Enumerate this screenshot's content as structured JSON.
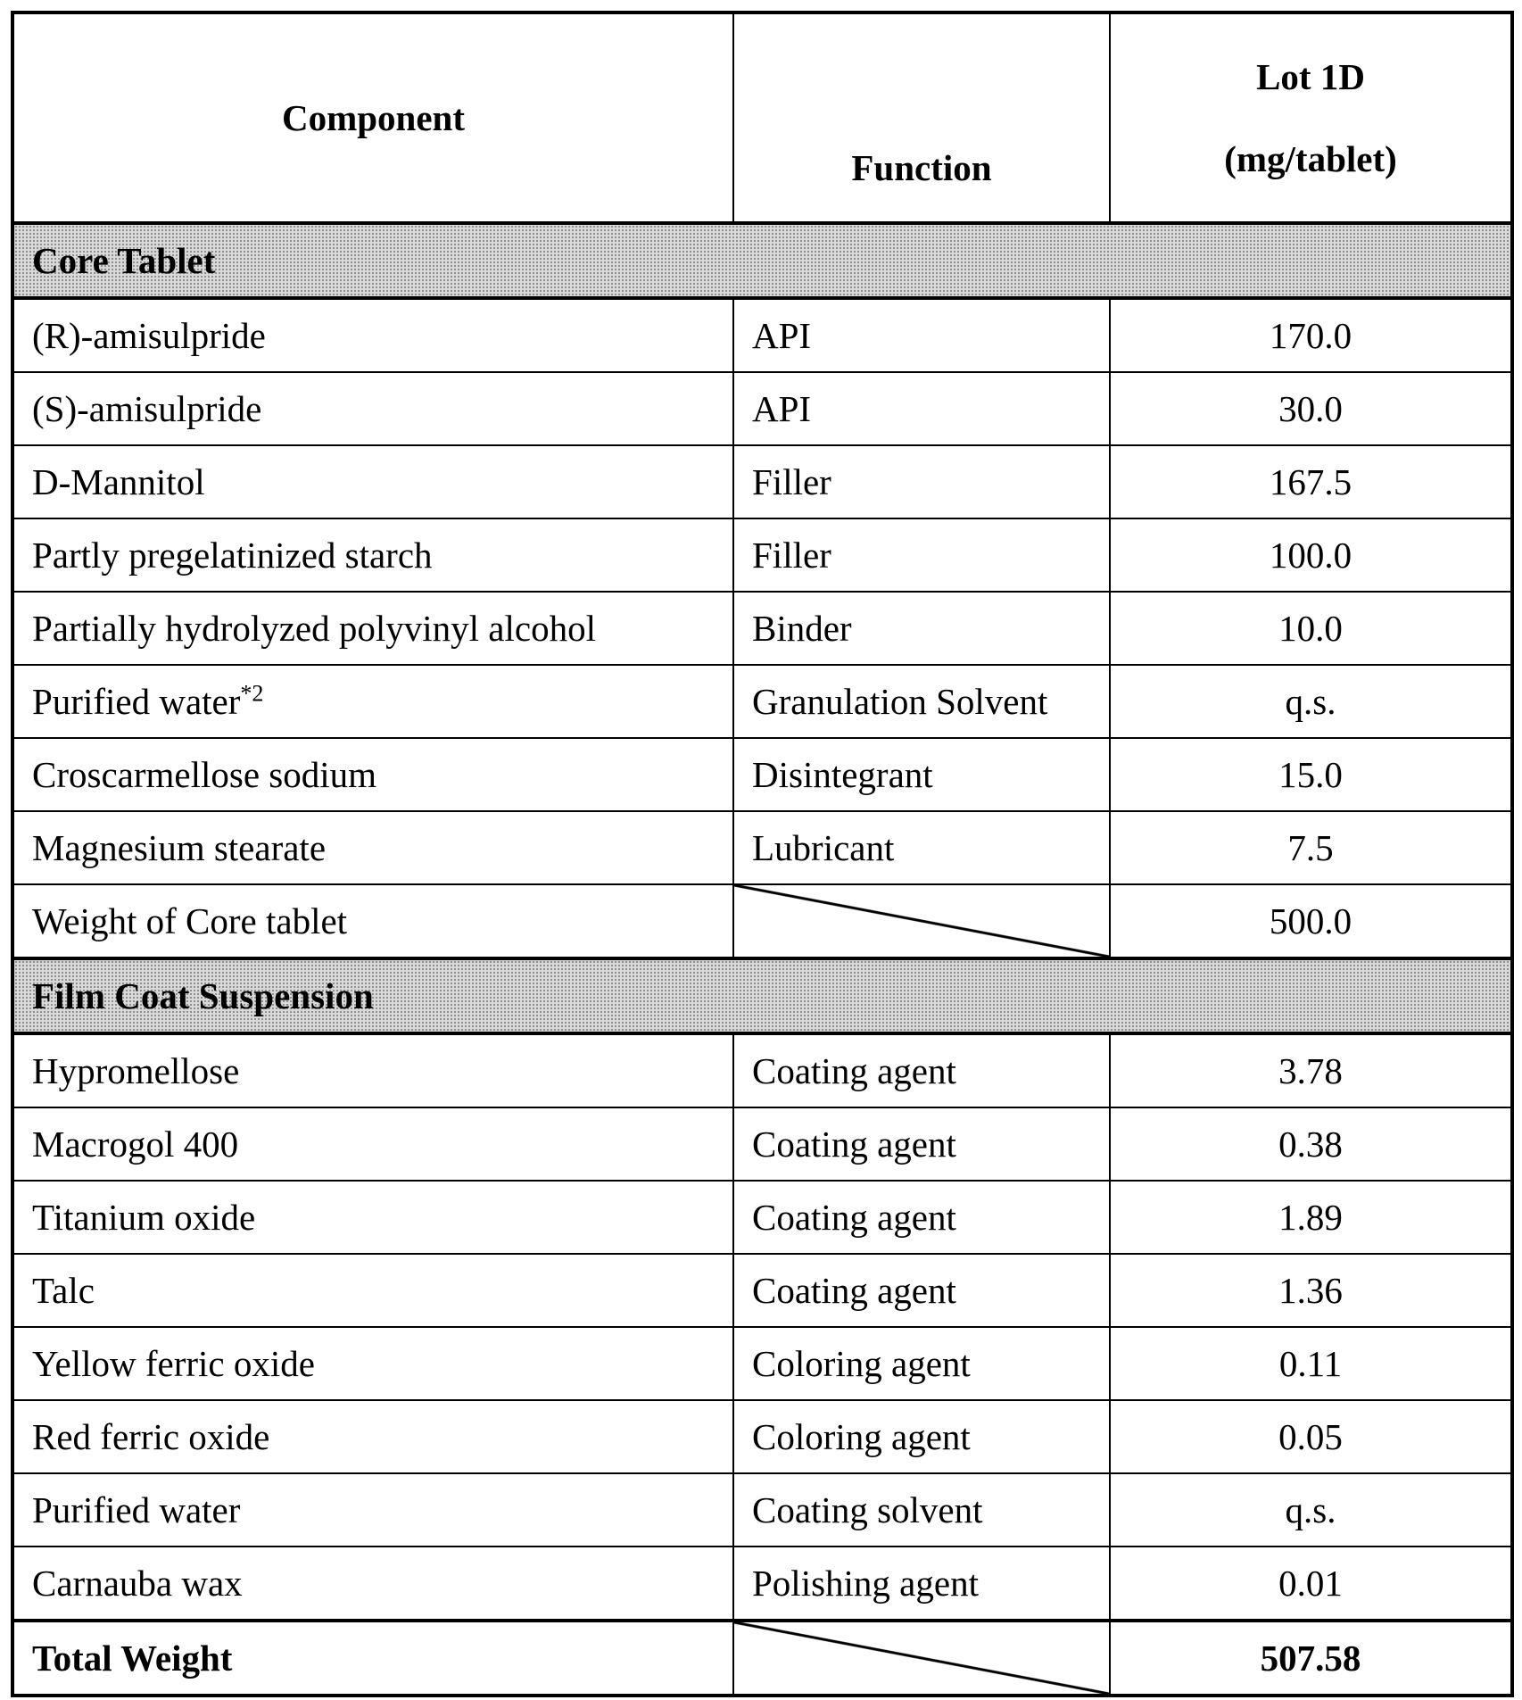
{
  "headers": {
    "component": "Component",
    "function": "Function",
    "lot_line1": "Lot 1D",
    "lot_line2": "(mg/tablet)"
  },
  "sections": [
    {
      "title": "Core Tablet",
      "rows": [
        {
          "component": "(R)-amisulpride",
          "function": "API",
          "value": "170.0"
        },
        {
          "component": "(S)-amisulpride",
          "function": "API",
          "value": "30.0"
        },
        {
          "component": "D-Mannitol",
          "function": "Filler",
          "value": "167.5"
        },
        {
          "component": "Partly pregelatinized starch",
          "function": "Filler",
          "value": "100.0"
        },
        {
          "component": "Partially hydrolyzed polyvinyl alcohol",
          "function": "Binder",
          "value": "10.0"
        },
        {
          "component": "Purified water",
          "sup": "*2",
          "function": "Granulation Solvent",
          "value": "q.s."
        },
        {
          "component": "Croscarmellose sodium",
          "function": "Disintegrant",
          "value": "15.0"
        },
        {
          "component": "Magnesium stearate",
          "function": "Lubricant",
          "value": "7.5"
        },
        {
          "component": "Weight of Core tablet",
          "function": "",
          "value": "500.0"
        }
      ]
    },
    {
      "title": "Film Coat Suspension",
      "rows": [
        {
          "component": "Hypromellose",
          "function": "Coating agent",
          "value": "3.78"
        },
        {
          "component": "Macrogol 400",
          "function": "Coating agent",
          "value": "0.38"
        },
        {
          "component": "Titanium oxide",
          "function": "Coating agent",
          "value": "1.89"
        },
        {
          "component": "Talc",
          "function": "Coating agent",
          "value": "1.36"
        },
        {
          "component": "Yellow ferric oxide",
          "function": "Coloring agent",
          "value": "0.11"
        },
        {
          "component": "Red ferric oxide",
          "function": "Coloring agent",
          "value": "0.05"
        },
        {
          "component": "Purified water",
          "function": "Coating solvent",
          "value": "q.s."
        },
        {
          "component": "Carnauba wax",
          "function": "Polishing agent",
          "value": "0.01"
        }
      ]
    }
  ],
  "total": {
    "label": "Total Weight",
    "value": "507.58"
  }
}
